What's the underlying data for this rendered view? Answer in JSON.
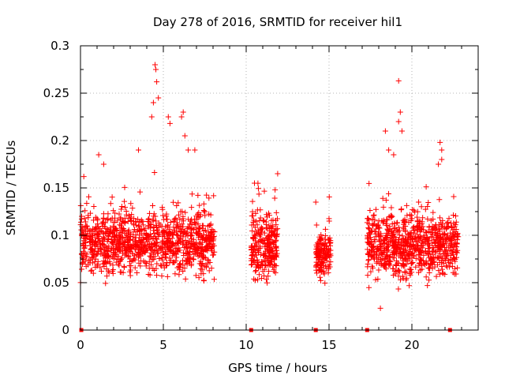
{
  "chart_data": {
    "type": "scatter",
    "title": "Day 278 of 2016, SRMTID for receiver hil1",
    "xlabel": "GPS time / hours",
    "ylabel": "SRMTID / TECUs",
    "xlim": [
      0,
      24
    ],
    "ylim": [
      0,
      0.3
    ],
    "grid": true,
    "marker": "+",
    "color": "#ff0000",
    "x_ticks": [
      "0",
      "5",
      "10",
      "15",
      "20"
    ],
    "x_tick_values": [
      0,
      5,
      10,
      15,
      20
    ],
    "y_ticks": [
      "0",
      "0.05",
      "0.1",
      "0.15",
      "0.2",
      "0.25",
      "0.3"
    ],
    "y_tick_values": [
      0,
      0.05,
      0.1,
      0.15,
      0.2,
      0.25,
      0.3
    ],
    "series": [
      {
        "name": "SRMTID",
        "clusters": [
          {
            "x_start": 0.0,
            "x_end": 8.1,
            "typical_low": 0.045,
            "typical_high": 0.13,
            "count": 1100
          },
          {
            "x_start": 10.3,
            "x_end": 11.9,
            "typical_low": 0.04,
            "typical_high": 0.13,
            "count": 260
          },
          {
            "x_start": 14.2,
            "x_end": 15.1,
            "typical_low": 0.045,
            "typical_high": 0.11,
            "count": 150
          },
          {
            "x_start": 17.3,
            "x_end": 22.8,
            "typical_low": 0.04,
            "typical_high": 0.13,
            "count": 800
          }
        ],
        "highlights": [
          {
            "x": 4.5,
            "y": 0.28
          },
          {
            "x": 4.55,
            "y": 0.275
          },
          {
            "x": 4.6,
            "y": 0.262
          },
          {
            "x": 4.4,
            "y": 0.24
          },
          {
            "x": 4.7,
            "y": 0.245
          },
          {
            "x": 4.3,
            "y": 0.225
          },
          {
            "x": 5.3,
            "y": 0.225
          },
          {
            "x": 5.4,
            "y": 0.218
          },
          {
            "x": 6.2,
            "y": 0.23
          },
          {
            "x": 6.1,
            "y": 0.225
          },
          {
            "x": 6.3,
            "y": 0.205
          },
          {
            "x": 6.5,
            "y": 0.19
          },
          {
            "x": 6.9,
            "y": 0.19
          },
          {
            "x": 3.5,
            "y": 0.19
          },
          {
            "x": 1.1,
            "y": 0.185
          },
          {
            "x": 1.4,
            "y": 0.175
          },
          {
            "x": 0.2,
            "y": 0.162
          },
          {
            "x": 11.9,
            "y": 0.165
          },
          {
            "x": 10.5,
            "y": 0.155
          },
          {
            "x": 14.2,
            "y": 0.135
          },
          {
            "x": 19.2,
            "y": 0.263
          },
          {
            "x": 19.3,
            "y": 0.23
          },
          {
            "x": 19.2,
            "y": 0.22
          },
          {
            "x": 19.4,
            "y": 0.21
          },
          {
            "x": 18.4,
            "y": 0.21
          },
          {
            "x": 18.6,
            "y": 0.19
          },
          {
            "x": 18.9,
            "y": 0.185
          },
          {
            "x": 21.7,
            "y": 0.198
          },
          {
            "x": 21.8,
            "y": 0.19
          },
          {
            "x": 21.8,
            "y": 0.18
          },
          {
            "x": 21.6,
            "y": 0.175
          },
          {
            "x": 18.1,
            "y": 0.023
          }
        ],
        "zero_points": [
          0.05,
          10.3,
          14.2,
          17.3,
          22.3
        ]
      }
    ]
  }
}
